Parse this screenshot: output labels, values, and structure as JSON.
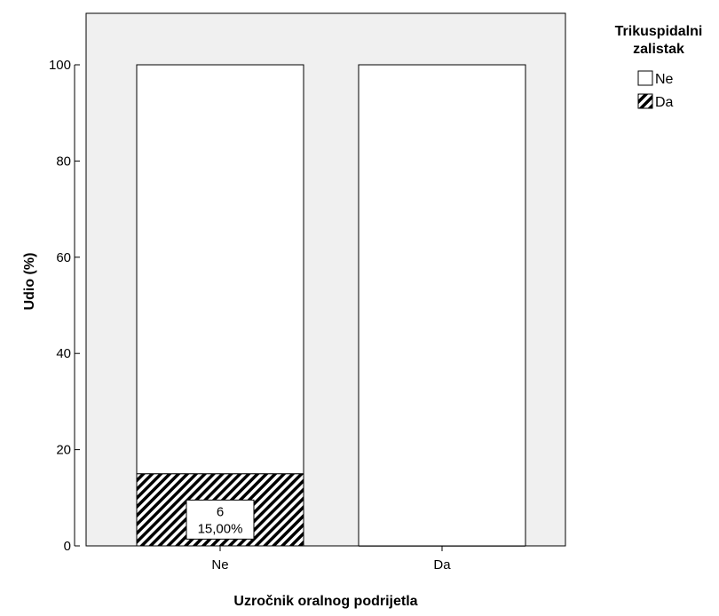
{
  "chart_data": {
    "type": "bar",
    "stacked": true,
    "xlabel": "Uzročnik oralnog podrijetla",
    "ylabel": "Udio (%)",
    "ylim": [
      0,
      100
    ],
    "yticks": [
      0,
      20,
      40,
      60,
      80,
      100
    ],
    "categories": [
      "Ne",
      "Da"
    ],
    "series": [
      {
        "name": "Da",
        "values": [
          15,
          0
        ],
        "pattern": "diagonal-hatch",
        "color": "#000000"
      },
      {
        "name": "Ne",
        "values": [
          85,
          100
        ],
        "pattern": "none",
        "color": "#ffffff"
      }
    ],
    "data_labels": [
      {
        "category": "Ne",
        "series": "Da",
        "count": "6",
        "percent": "15,00%"
      }
    ],
    "legend": {
      "title": "Trikuspidalni zalistak",
      "title_lines": [
        "Trikuspidalni",
        "zalistak"
      ],
      "entries": [
        {
          "label": "Ne",
          "pattern": "none"
        },
        {
          "label": "Da",
          "pattern": "diagonal-hatch"
        }
      ],
      "position": "top-right"
    },
    "plot_background": "#f0f0f0",
    "grid": false
  }
}
